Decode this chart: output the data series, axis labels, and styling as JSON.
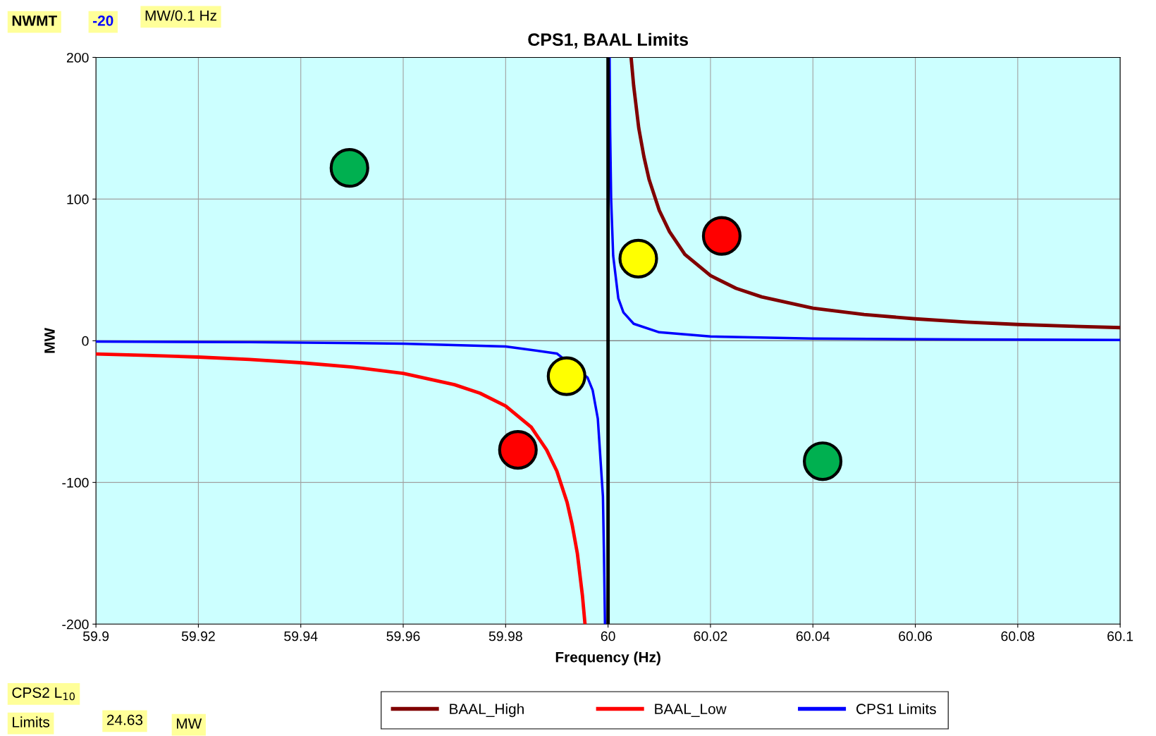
{
  "chart_data": {
    "type": "line",
    "title": "CPS1, BAAL Limits",
    "xlabel": "Frequency (Hz)",
    "ylabel": "MW",
    "xlim": [
      59.9,
      60.1
    ],
    "xticks": [
      59.9,
      59.92,
      59.94,
      59.96,
      59.98,
      60,
      60.02,
      60.04,
      60.06,
      60.08,
      60.1
    ],
    "ylim": [
      -200,
      200
    ],
    "yticks": [
      -200,
      -100,
      0,
      100,
      200
    ],
    "grid": true,
    "legend": "bottom",
    "series": [
      {
        "name": "BAAL_High",
        "color": "#800000",
        "x": [
          60.0045,
          60.005,
          60.006,
          60.007,
          60.008,
          60.01,
          60.012,
          60.015,
          60.02,
          60.025,
          60.03,
          60.04,
          60.05,
          60.06,
          60.07,
          60.08,
          60.09,
          60.1
        ],
        "values": [
          200,
          180,
          150,
          130,
          114,
          92,
          77,
          61,
          46,
          37,
          31,
          23,
          18.5,
          15.5,
          13.2,
          11.5,
          10.3,
          9.3
        ]
      },
      {
        "name": "BAAL_Low",
        "color": "#ff0000",
        "x": [
          59.9,
          59.91,
          59.92,
          59.93,
          59.94,
          59.95,
          59.96,
          59.97,
          59.975,
          59.98,
          59.985,
          59.988,
          59.99,
          59.992,
          59.993,
          59.994,
          59.995,
          59.9955
        ],
        "values": [
          -9.3,
          -10.3,
          -11.5,
          -13.2,
          -15.5,
          -18.5,
          -23,
          -31,
          -37,
          -46,
          -61,
          -77,
          -92,
          -114,
          -130,
          -150,
          -180,
          -200
        ]
      },
      {
        "name": "CPS1 Limits",
        "color": "#0000ff",
        "x": [
          59.9,
          59.93,
          59.96,
          59.98,
          59.99,
          59.996,
          59.997,
          59.998,
          59.999,
          59.9992,
          59.9994,
          60,
          60.0003,
          60.0004,
          60.0006,
          60.001,
          60.002,
          60.003,
          60.005,
          60.01,
          60.02,
          60.04,
          60.07,
          60.1
        ],
        "values": [
          -0.6,
          -1,
          -2,
          -4,
          -9,
          -26,
          -35,
          -55,
          -110,
          -150,
          -200,
          null,
          200,
          150,
          100,
          60,
          30,
          20,
          12,
          6,
          3,
          1.5,
          0.9,
          0.6
        ]
      },
      {
        "type": "scatter",
        "marker": "circle",
        "x": [
          59.9495,
          60.0059,
          60.0222,
          59.9919,
          59.9824,
          60.0419
        ],
        "values": [
          122,
          58,
          74,
          -25,
          -77,
          -85
        ],
        "colors": [
          "#00b050",
          "#ffff00",
          "#ff0000",
          "#ffff00",
          "#ff0000",
          "#00b050"
        ]
      }
    ],
    "ref_lines": [
      {
        "axis": "x",
        "value": 60,
        "color": "#000000"
      }
    ],
    "annotations": [
      "NWMT",
      "-20",
      "MW/0.1 Hz",
      "CPS2 L$_{10}$",
      "Limits",
      "24.63",
      "MW"
    ]
  }
}
